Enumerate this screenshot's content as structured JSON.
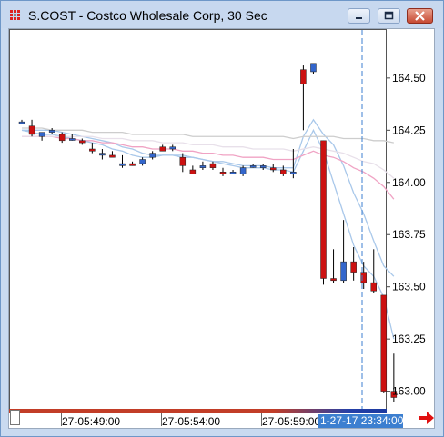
{
  "window": {
    "title": "S.COST - Costco Wholesale Corp, 30 Sec"
  },
  "chart_data": {
    "type": "candlestick",
    "title": "S.COST - Costco Wholesale Corp, 30 Sec",
    "y_ticks": [
      "164.50",
      "164.25",
      "164.00",
      "163.75",
      "163.50",
      "163.25",
      "163.00"
    ],
    "ylim": [
      162.92,
      164.73
    ],
    "x_ticks": [
      "27-05:49:00",
      "27-05:54:00",
      "27-05:59:00"
    ],
    "current_time_label": "1-27-17 23:34:00",
    "colors": {
      "up": "#3366cc",
      "down": "#cc1111",
      "ma_light_blue": "#a9c8ea",
      "ma_pink": "#f0a3c4",
      "ma_gray": "#c8c8c8"
    },
    "candles": [
      {
        "o": 164.29,
        "h": 164.3,
        "l": 164.28,
        "c": 164.29
      },
      {
        "o": 164.27,
        "h": 164.3,
        "l": 164.22,
        "c": 164.23
      },
      {
        "o": 164.22,
        "h": 164.24,
        "l": 164.2,
        "c": 164.24
      },
      {
        "o": 164.24,
        "h": 164.26,
        "l": 164.23,
        "c": 164.25
      },
      {
        "o": 164.23,
        "h": 164.24,
        "l": 164.19,
        "c": 164.2
      },
      {
        "o": 164.21,
        "h": 164.23,
        "l": 164.2,
        "c": 164.21
      },
      {
        "o": 164.2,
        "h": 164.21,
        "l": 164.18,
        "c": 164.19
      },
      {
        "o": 164.16,
        "h": 164.19,
        "l": 164.14,
        "c": 164.15
      },
      {
        "o": 164.13,
        "h": 164.16,
        "l": 164.11,
        "c": 164.14
      },
      {
        "o": 164.13,
        "h": 164.15,
        "l": 164.12,
        "c": 164.12
      },
      {
        "o": 164.08,
        "h": 164.13,
        "l": 164.07,
        "c": 164.09
      },
      {
        "o": 164.09,
        "h": 164.1,
        "l": 164.08,
        "c": 164.08
      },
      {
        "o": 164.09,
        "h": 164.12,
        "l": 164.08,
        "c": 164.11
      },
      {
        "o": 164.12,
        "h": 164.15,
        "l": 164.11,
        "c": 164.14
      },
      {
        "o": 164.17,
        "h": 164.18,
        "l": 164.15,
        "c": 164.15
      },
      {
        "o": 164.16,
        "h": 164.18,
        "l": 164.15,
        "c": 164.17
      },
      {
        "o": 164.12,
        "h": 164.14,
        "l": 164.05,
        "c": 164.08
      },
      {
        "o": 164.06,
        "h": 164.08,
        "l": 164.04,
        "c": 164.04
      },
      {
        "o": 164.07,
        "h": 164.1,
        "l": 164.06,
        "c": 164.08
      },
      {
        "o": 164.09,
        "h": 164.1,
        "l": 164.06,
        "c": 164.07
      },
      {
        "o": 164.05,
        "h": 164.07,
        "l": 164.03,
        "c": 164.04
      },
      {
        "o": 164.05,
        "h": 164.06,
        "l": 164.04,
        "c": 164.05
      },
      {
        "o": 164.04,
        "h": 164.08,
        "l": 164.03,
        "c": 164.07
      },
      {
        "o": 164.08,
        "h": 164.09,
        "l": 164.07,
        "c": 164.08
      },
      {
        "o": 164.07,
        "h": 164.09,
        "l": 164.06,
        "c": 164.08
      },
      {
        "o": 164.07,
        "h": 164.09,
        "l": 164.05,
        "c": 164.06
      },
      {
        "o": 164.06,
        "h": 164.08,
        "l": 164.03,
        "c": 164.04
      },
      {
        "o": 164.04,
        "h": 164.16,
        "l": 164.02,
        "c": 164.05
      },
      {
        "o": 164.54,
        "h": 164.56,
        "l": 164.25,
        "c": 164.47
      },
      {
        "o": 164.53,
        "h": 164.57,
        "l": 164.52,
        "c": 164.57
      },
      {
        "o": 164.2,
        "h": 164.2,
        "l": 163.51,
        "c": 163.54
      },
      {
        "o": 163.54,
        "h": 163.68,
        "l": 163.52,
        "c": 163.53
      },
      {
        "o": 163.53,
        "h": 163.82,
        "l": 163.52,
        "c": 163.62
      },
      {
        "o": 163.62,
        "h": 163.69,
        "l": 163.53,
        "c": 163.57
      },
      {
        "o": 163.57,
        "h": 163.62,
        "l": 163.49,
        "c": 163.52
      },
      {
        "o": 163.52,
        "h": 163.68,
        "l": 163.47,
        "c": 163.48
      },
      {
        "o": 163.46,
        "h": 163.46,
        "l": 162.99,
        "c": 163.0
      },
      {
        "o": 163.0,
        "h": 163.18,
        "l": 162.95,
        "c": 162.97
      }
    ],
    "moving_averages": [
      {
        "name": "",
        "color": "#a9c8ea",
        "values": [
          164.25,
          164.24,
          164.23,
          164.23,
          164.22,
          164.21,
          164.2,
          164.19,
          164.18,
          164.16,
          164.15,
          164.13,
          164.12,
          164.12,
          164.13,
          164.13,
          164.13,
          164.12,
          164.11,
          164.1,
          164.09,
          164.08,
          164.07,
          164.07,
          164.07,
          164.06,
          164.06,
          164.05,
          164.15,
          164.25,
          164.15,
          164.0,
          163.85,
          163.7,
          163.6,
          163.55,
          163.45,
          163.25
        ]
      },
      {
        "name": "",
        "color": "#a9c8ea",
        "values": [
          164.25,
          164.25,
          164.25,
          164.25,
          164.24,
          164.23,
          164.22,
          164.21,
          164.2,
          164.19,
          164.17,
          164.16,
          164.14,
          164.13,
          164.13,
          164.13,
          164.12,
          164.12,
          164.11,
          164.1,
          164.1,
          164.09,
          164.08,
          164.08,
          164.08,
          164.07,
          164.07,
          164.07,
          164.22,
          164.3,
          164.23,
          164.18,
          164.08,
          163.95,
          163.85,
          163.72,
          163.6,
          163.55
        ]
      },
      {
        "name": "",
        "color": "#f0a3c4",
        "values": [
          164.22,
          164.22,
          164.22,
          164.22,
          164.21,
          164.21,
          164.2,
          164.2,
          164.19,
          164.19,
          164.18,
          164.17,
          164.17,
          164.16,
          164.16,
          164.16,
          164.15,
          164.15,
          164.14,
          164.14,
          164.13,
          164.13,
          164.12,
          164.12,
          164.12,
          164.11,
          164.11,
          164.11,
          164.13,
          164.15,
          164.13,
          164.12,
          164.1,
          164.07,
          164.05,
          164.02,
          163.98,
          163.92
        ]
      },
      {
        "name": "",
        "color": "#e8e0ea",
        "values": [
          164.22,
          164.22,
          164.22,
          164.22,
          164.22,
          164.22,
          164.22,
          164.22,
          164.21,
          164.21,
          164.21,
          164.2,
          164.2,
          164.2,
          164.19,
          164.19,
          164.19,
          164.18,
          164.18,
          164.18,
          164.17,
          164.17,
          164.17,
          164.16,
          164.16,
          164.16,
          164.16,
          164.15,
          164.16,
          164.17,
          164.16,
          164.15,
          164.14,
          164.12,
          164.1,
          164.09,
          164.06,
          164.02
        ]
      },
      {
        "name": "",
        "color": "#cdcdcd",
        "values": [
          164.26,
          164.26,
          164.26,
          164.25,
          164.25,
          164.25,
          164.25,
          164.24,
          164.24,
          164.24,
          164.24,
          164.23,
          164.23,
          164.23,
          164.23,
          164.23,
          164.23,
          164.22,
          164.22,
          164.22,
          164.22,
          164.22,
          164.22,
          164.22,
          164.22,
          164.22,
          164.22,
          164.21,
          164.22,
          164.22,
          164.22,
          164.22,
          164.21,
          164.21,
          164.21,
          164.2,
          164.2,
          164.19
        ]
      }
    ]
  }
}
